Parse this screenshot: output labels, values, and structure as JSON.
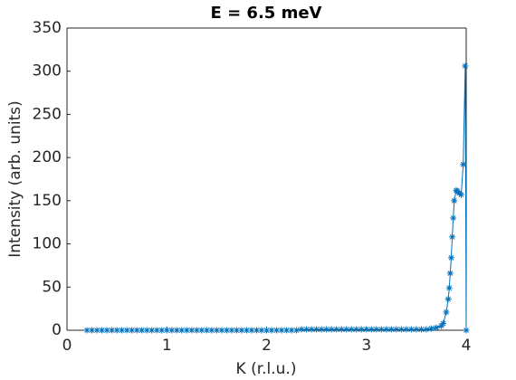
{
  "chart_data": {
    "type": "line",
    "title": "E = 6.5 meV",
    "x_label": "K (r.l.u.)",
    "y_label": "Intensity (arb. units)",
    "x": [
      0.2,
      0.25,
      0.3,
      0.35,
      0.4,
      0.45,
      0.5,
      0.55,
      0.6,
      0.65,
      0.7,
      0.75,
      0.8,
      0.85,
      0.9,
      0.95,
      1,
      1.05,
      1.1,
      1.15,
      1.2,
      1.25,
      1.3,
      1.35,
      1.4,
      1.45,
      1.5,
      1.55,
      1.6,
      1.65,
      1.7,
      1.75,
      1.8,
      1.85,
      1.9,
      1.95,
      2,
      2.05,
      2.1,
      2.15,
      2.2,
      2.25,
      2.3,
      2.35,
      2.4,
      2.45,
      2.5,
      2.55,
      2.6,
      2.65,
      2.7,
      2.75,
      2.8,
      2.85,
      2.9,
      2.95,
      3,
      3.05,
      3.1,
      3.15,
      3.2,
      3.25,
      3.3,
      3.35,
      3.4,
      3.45,
      3.5,
      3.55,
      3.6,
      3.65,
      3.7,
      3.75,
      3.77,
      3.8,
      3.82,
      3.83,
      3.84,
      3.85,
      3.86,
      3.87,
      3.88,
      3.9,
      3.91,
      3.93,
      3.95,
      3.97,
      3.99,
      4
    ],
    "series": [
      {
        "color": "#0072bd",
        "marker": "asterisk",
        "values": [
          0,
          0,
          0,
          0,
          0,
          0,
          0,
          0,
          0,
          0,
          0,
          0,
          0,
          0,
          0,
          0,
          0,
          0,
          0,
          0,
          0,
          0,
          0,
          0,
          0,
          0,
          0,
          0,
          0,
          0,
          0,
          0,
          0,
          0,
          0,
          0,
          0,
          0,
          0,
          0,
          0,
          0,
          0,
          1,
          1,
          1,
          1,
          1,
          1,
          1,
          1,
          1,
          1,
          1,
          1,
          1,
          1,
          1,
          1,
          1,
          1,
          1,
          1,
          1,
          1,
          1,
          1,
          1,
          1,
          2,
          3,
          5,
          8,
          21,
          36,
          49,
          66,
          84,
          108,
          130,
          150,
          162,
          161,
          159,
          157,
          192,
          306,
          0
        ]
      }
    ],
    "xlim": [
      0,
      4
    ],
    "xticks": [
      0,
      1,
      2,
      3,
      4
    ],
    "ylim": [
      0,
      350
    ],
    "yticks": [
      0,
      50,
      100,
      150,
      200,
      250,
      300,
      350
    ],
    "grid": false,
    "box": true
  }
}
